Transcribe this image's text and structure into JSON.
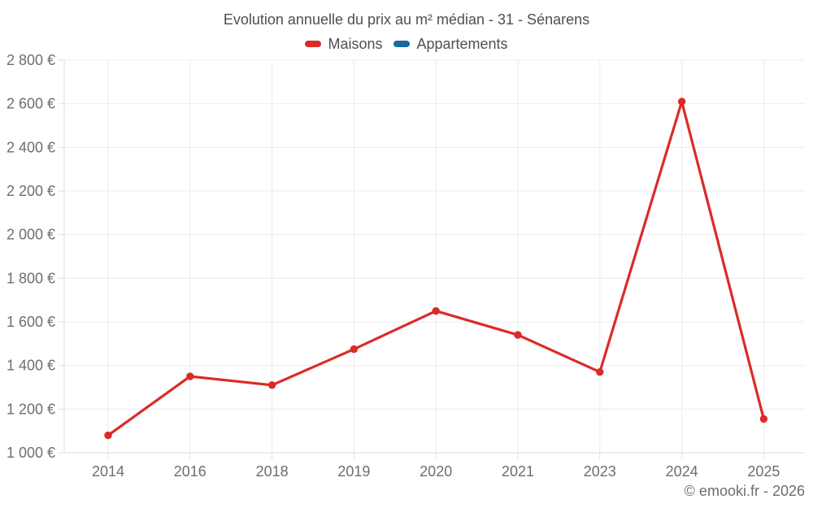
{
  "header": {
    "title": "Evolution annuelle du prix au m² médian - 31 - Sénarens"
  },
  "legend": {
    "items": [
      {
        "id": "maisons",
        "label": "Maisons",
        "color": "#db2b27"
      },
      {
        "id": "appartements",
        "label": "Appartements",
        "color": "#17699f"
      }
    ]
  },
  "footer": {
    "credit": "© emooki.fr - 2026"
  },
  "chart_data": {
    "type": "line",
    "title": "Evolution annuelle du prix au m² médian - 31 - Sénarens",
    "categories": [
      "2014",
      "2016",
      "2018",
      "2019",
      "2020",
      "2021",
      "2023",
      "2024",
      "2025"
    ],
    "series": [
      {
        "name": "Maisons",
        "color": "#db2b27",
        "values": [
          1080,
          1350,
          1310,
          1475,
          1650,
          1540,
          1370,
          2610,
          1155
        ]
      },
      {
        "name": "Appartements",
        "color": "#17699f",
        "values": []
      }
    ],
    "xlabel": "",
    "ylabel": "",
    "ylim": [
      1000,
      2800
    ],
    "y_ticks": [
      {
        "value": 1000,
        "label": "1 000 €"
      },
      {
        "value": 1200,
        "label": "1 200 €"
      },
      {
        "value": 1400,
        "label": "1 400 €"
      },
      {
        "value": 1600,
        "label": "1 600 €"
      },
      {
        "value": 1800,
        "label": "1 800 €"
      },
      {
        "value": 2000,
        "label": "2 000 €"
      },
      {
        "value": 2200,
        "label": "2 200 €"
      },
      {
        "value": 2400,
        "label": "2 400 €"
      },
      {
        "value": 2600,
        "label": "2 600 €"
      },
      {
        "value": 2800,
        "label": "2 800 €"
      }
    ],
    "grid": true,
    "legend_position": "top",
    "colors": {
      "gridline": "#ececec",
      "axis": "#dedede",
      "tick_text": "#6e6e6e",
      "title_text": "#4f4f4f"
    }
  }
}
